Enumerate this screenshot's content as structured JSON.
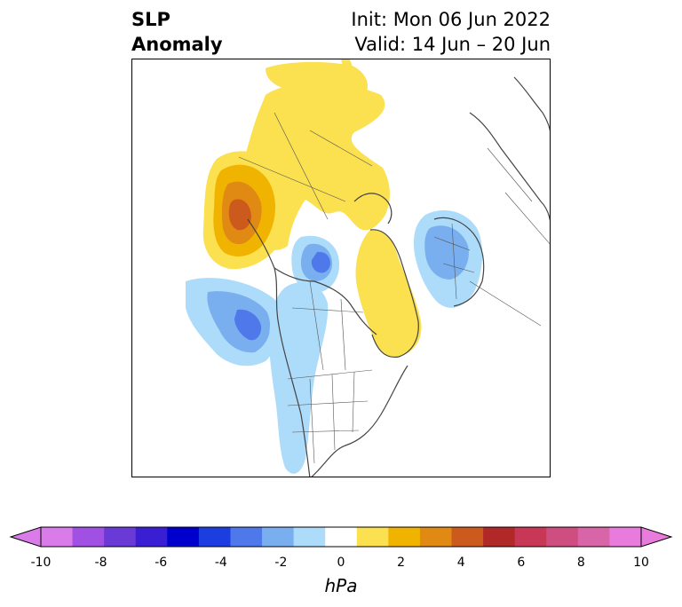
{
  "header": {
    "title_line1": "SLP",
    "title_line2": "Anomaly",
    "init_text": "Init: Mon 06 Jun 2022",
    "valid_text": "Valid: 14 Jun – 20 Jun"
  },
  "map": {
    "projection": "polar-stereographic (North America / Arctic)",
    "features": [
      "coastlines",
      "country-borders",
      "us-state-borders",
      "canada-province-borders"
    ]
  },
  "colorbar": {
    "units": "hPa",
    "min": -10,
    "max": 10,
    "step": 1,
    "ticks": [
      "-10",
      "-8",
      "-6",
      "-4",
      "-2",
      "0",
      "2",
      "4",
      "6",
      "8",
      "10"
    ],
    "colors": [
      "#d97be8",
      "#a050e2",
      "#6a3ad6",
      "#3a1ed4",
      "#0000cc",
      "#1c3ee0",
      "#4f78ea",
      "#7aafef",
      "#acdcfa",
      "#ffffff",
      "#fbe04f",
      "#f0b400",
      "#e08a14",
      "#cc5a1c",
      "#b02828",
      "#c83856",
      "#cf4e82",
      "#d865a8",
      "#e87bdc"
    ],
    "extend_low_color": "#d97be8",
    "extend_high_color": "#e87bdc"
  }
}
